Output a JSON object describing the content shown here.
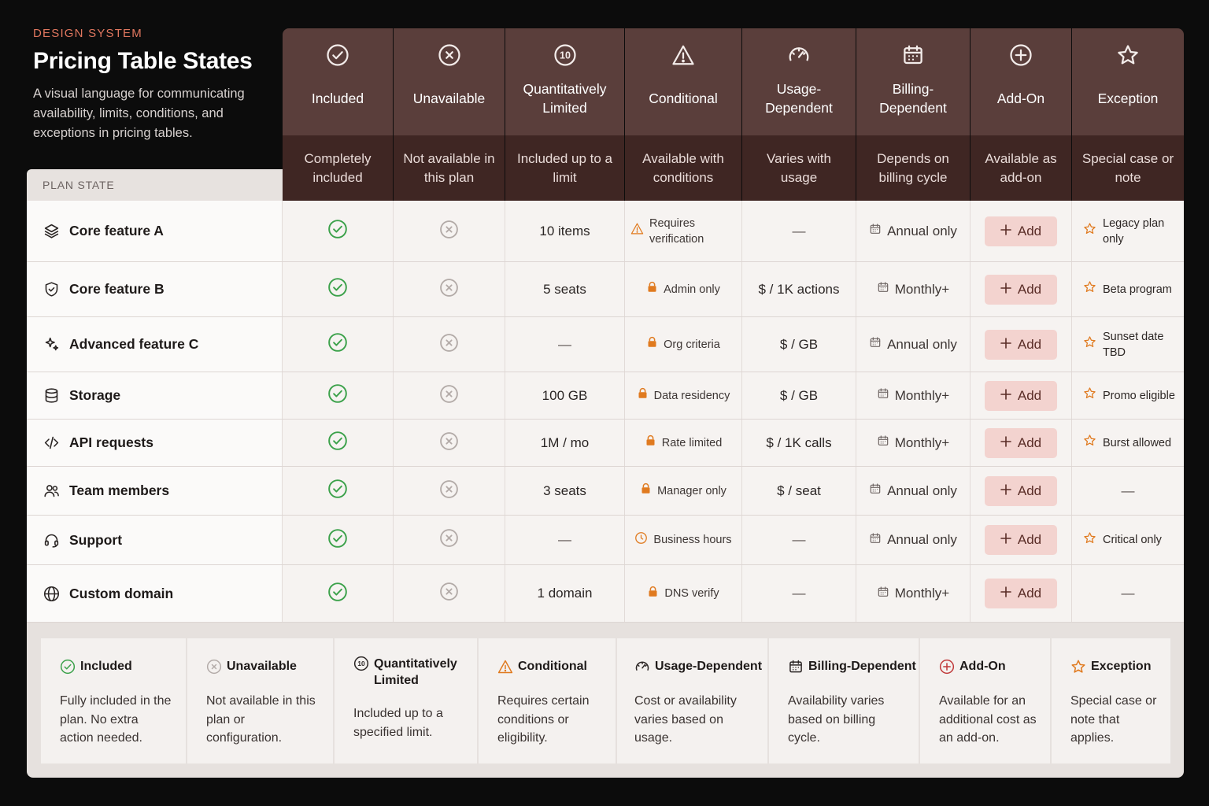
{
  "intro": {
    "eyebrow": "DESIGN SYSTEM",
    "title": "Pricing Table States",
    "subtitle": "A visual language for communicating availability, limits, conditions, and exceptions in pricing tables."
  },
  "colors": {
    "accent": "#e0775f",
    "header_top": "#5a3e3b",
    "header_bottom": "#3f2623",
    "included": "#3ba14a",
    "warning": "#e07a1f",
    "add_bg": "#f3d3cf"
  },
  "plan_state_label": "PLAN STATE",
  "columns": [
    {
      "icon": "check-circle-icon",
      "title": "Included",
      "desc": "Completely included"
    },
    {
      "icon": "x-circle-icon",
      "title": "Unavailable",
      "desc": "Not available in this plan"
    },
    {
      "icon": "limit-10-icon",
      "title": "Quantitatively Limited",
      "desc": "Included up to a limit",
      "badge": "10"
    },
    {
      "icon": "warning-triangle-icon",
      "title": "Conditional",
      "desc": "Available with conditions"
    },
    {
      "icon": "gauge-icon",
      "title": "Usage-Dependent",
      "desc": "Varies with usage"
    },
    {
      "icon": "calendar-icon",
      "title": "Billing-Dependent",
      "desc": "Depends on billing cycle"
    },
    {
      "icon": "plus-circle-icon",
      "title": "Add-On",
      "desc": "Available as add-on"
    },
    {
      "icon": "star-icon",
      "title": "Exception",
      "desc": "Special case or note"
    }
  ],
  "rows": [
    {
      "icon": "layers-icon",
      "feature": "Core feature A",
      "limit": "10 items",
      "cond_icon": "warning-icon",
      "cond": "Requires verification",
      "usage": "—",
      "billing": "Annual only",
      "add": "Add",
      "exc": "Legacy plan only",
      "exc_star": true
    },
    {
      "icon": "shield-icon",
      "feature": "Core feature B",
      "limit": "5 seats",
      "cond_icon": "lock-icon",
      "cond": "Admin only",
      "usage": "$ / 1K actions",
      "billing": "Monthly+",
      "add": "Add",
      "exc": "Beta program",
      "exc_star": true
    },
    {
      "icon": "sparkle-icon",
      "feature": "Advanced feature C",
      "limit": "—",
      "cond_icon": "lock-icon",
      "cond": "Org criteria",
      "usage": "$ / GB",
      "billing": "Annual only",
      "add": "Add",
      "exc": "Sunset date TBD",
      "exc_star": true
    },
    {
      "icon": "database-icon",
      "feature": "Storage",
      "limit": "100 GB",
      "cond_icon": "lock-icon",
      "cond": "Data residency",
      "usage": "$ / GB",
      "billing": "Monthly+",
      "add": "Add",
      "exc": "Promo eligible",
      "exc_star": true
    },
    {
      "icon": "code-icon",
      "feature": "API requests",
      "limit": "1M / mo",
      "cond_icon": "lock-icon",
      "cond": "Rate limited",
      "usage": "$ / 1K calls",
      "billing": "Monthly+",
      "add": "Add",
      "exc": "Burst allowed",
      "exc_star": true
    },
    {
      "icon": "users-icon",
      "feature": "Team members",
      "limit": "3 seats",
      "cond_icon": "lock-icon",
      "cond": "Manager only",
      "usage": "$ / seat",
      "billing": "Annual only",
      "add": "Add",
      "exc": "—",
      "exc_star": false
    },
    {
      "icon": "headset-icon",
      "feature": "Support",
      "limit": "—",
      "cond_icon": "clock-icon",
      "cond": "Business hours",
      "usage": "—",
      "billing": "Annual only",
      "add": "Add",
      "exc": "Critical only",
      "exc_star": true
    },
    {
      "icon": "globe-icon",
      "feature": "Custom domain",
      "limit": "1 domain",
      "cond_icon": "lock-icon",
      "cond": "DNS verify",
      "usage": "—",
      "billing": "Monthly+",
      "add": "Add",
      "exc": "—",
      "exc_star": false
    }
  ],
  "legend": [
    {
      "icon": "check-circle-icon",
      "title": "Included",
      "desc": "Fully included in the plan. No extra action needed."
    },
    {
      "icon": "x-circle-icon",
      "title": "Unavailable",
      "desc": "Not available in this plan or configuration."
    },
    {
      "icon": "limit-10-icon",
      "title": "Quantitatively Limited",
      "desc": "Included up to a specified limit."
    },
    {
      "icon": "warning-triangle-icon",
      "title": "Conditional",
      "desc": "Requires certain conditions or eligibility."
    },
    {
      "icon": "gauge-icon",
      "title": "Usage-Dependent",
      "desc": "Cost or availability varies based on usage."
    },
    {
      "icon": "calendar-icon",
      "title": "Billing-Dependent",
      "desc": "Availability varies based on billing cycle."
    },
    {
      "icon": "plus-circle-icon",
      "title": "Add-On",
      "desc": "Available for an additional cost as an add-on."
    },
    {
      "icon": "star-icon",
      "title": "Exception",
      "desc": "Special case or note that applies."
    }
  ]
}
